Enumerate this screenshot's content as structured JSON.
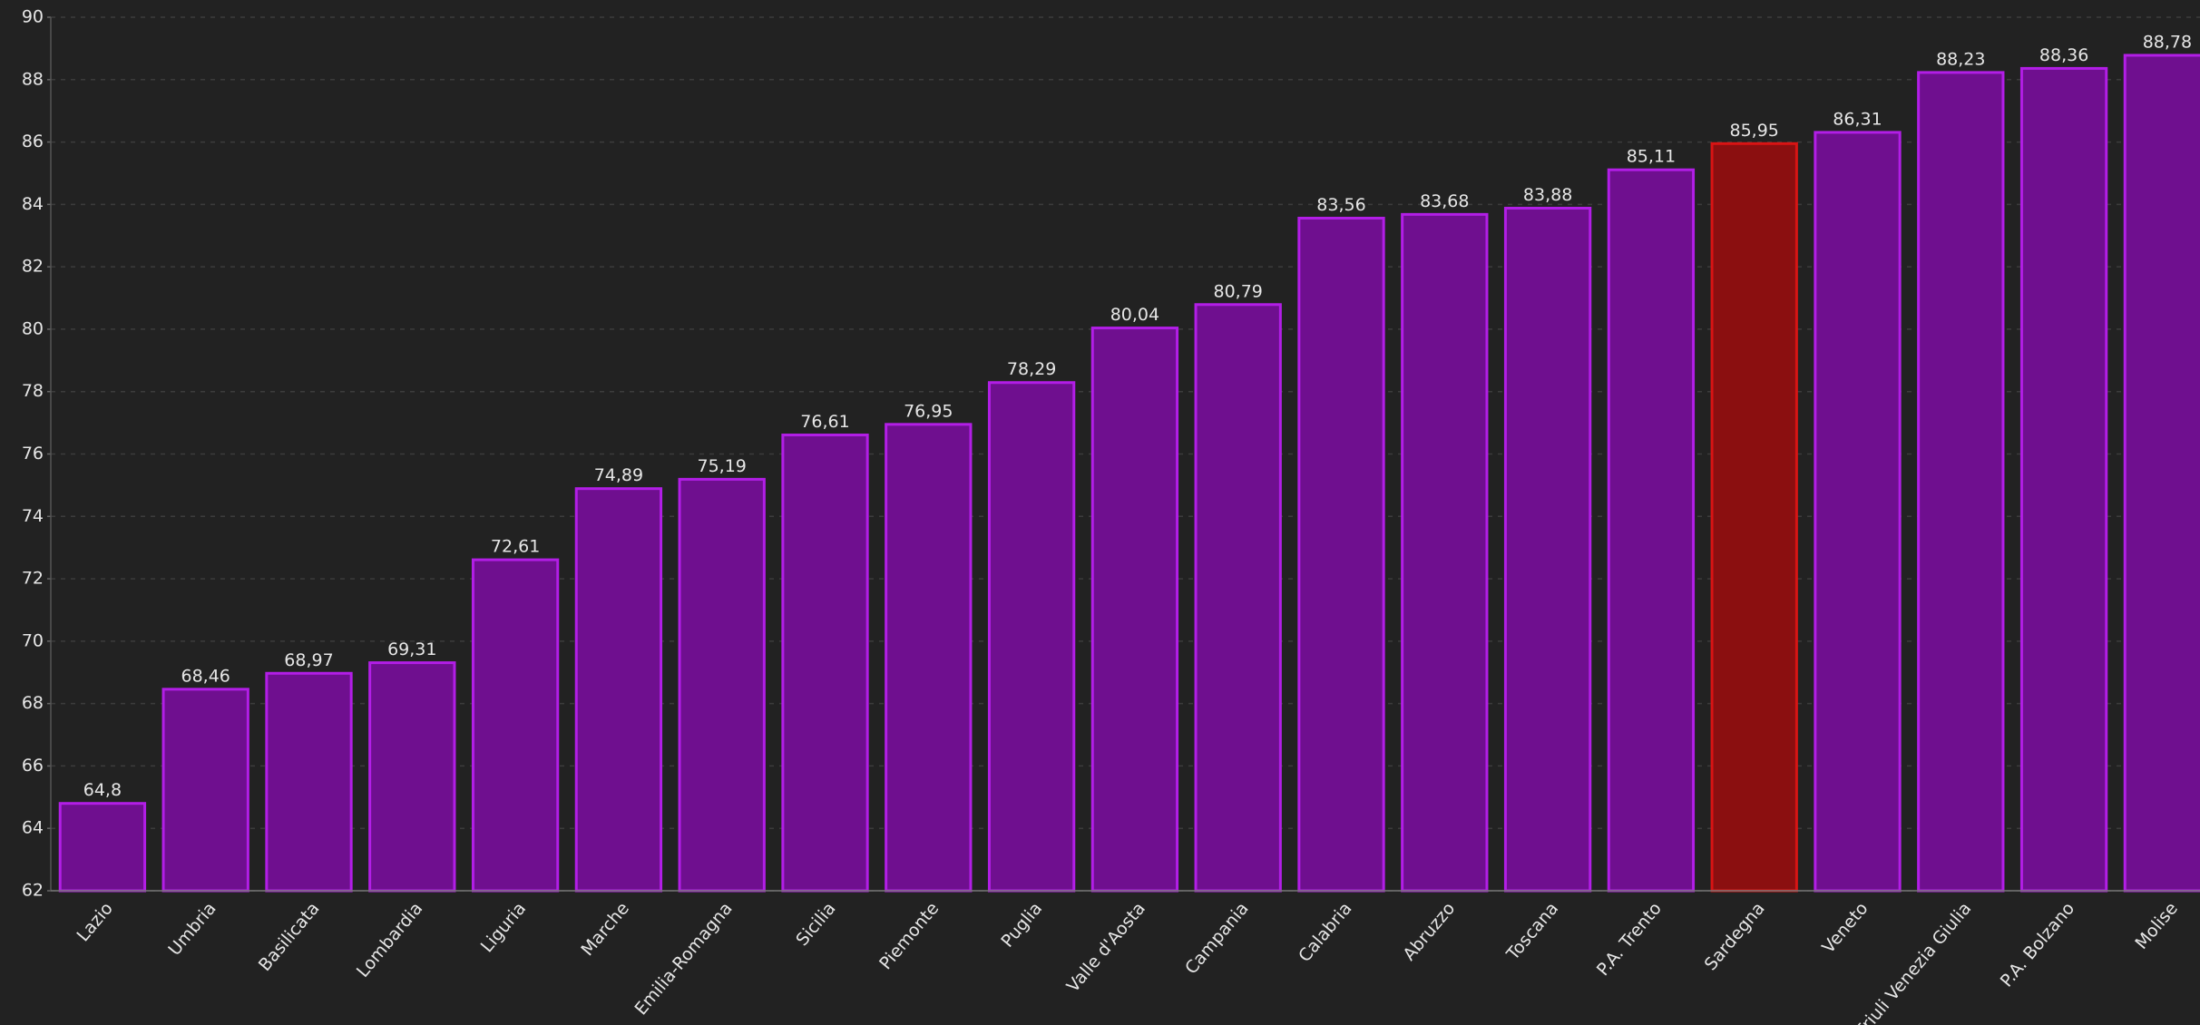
{
  "chart_data": {
    "type": "bar",
    "categories": [
      "Lazio",
      "Umbria",
      "Basilicata",
      "Lombardia",
      "Liguria",
      "Marche",
      "Emilia-Romagna",
      "Sicilia",
      "Piemonte",
      "Puglia",
      "Valle d'Aosta",
      "Campania",
      "Calabria",
      "Abruzzo",
      "Toscana",
      "P.A. Trento",
      "Sardegna",
      "Veneto",
      "Friuli Venezia Giulia",
      "P.A. Bolzano",
      "Molise"
    ],
    "values": [
      64.8,
      68.46,
      68.97,
      69.31,
      72.61,
      74.89,
      75.19,
      76.61,
      76.95,
      78.29,
      80.04,
      80.79,
      83.56,
      83.68,
      83.88,
      85.11,
      85.95,
      86.31,
      88.23,
      88.36,
      88.78
    ],
    "value_labels": [
      "64,8",
      "68,46",
      "68,97",
      "69,31",
      "72,61",
      "74,89",
      "75,19",
      "76,61",
      "76,95",
      "78,29",
      "80,04",
      "80,79",
      "83,56",
      "83,68",
      "83,88",
      "85,11",
      "85,95",
      "86,31",
      "88,23",
      "88,36",
      "88,78"
    ],
    "colors": [
      "#6f0f8f",
      "#6f0f8f",
      "#6f0f8f",
      "#6f0f8f",
      "#6f0f8f",
      "#6f0f8f",
      "#6f0f8f",
      "#6f0f8f",
      "#6f0f8f",
      "#6f0f8f",
      "#6f0f8f",
      "#6f0f8f",
      "#6f0f8f",
      "#6f0f8f",
      "#6f0f8f",
      "#6f0f8f",
      "#8b0f10",
      "#6f0f8f",
      "#6f0f8f",
      "#6f0f8f",
      "#6f0f8f"
    ],
    "edge_colors": [
      "#b21ee6",
      "#b21ee6",
      "#b21ee6",
      "#b21ee6",
      "#b21ee6",
      "#b21ee6",
      "#b21ee6",
      "#b21ee6",
      "#b21ee6",
      "#b21ee6",
      "#b21ee6",
      "#b21ee6",
      "#b21ee6",
      "#b21ee6",
      "#b21ee6",
      "#b21ee6",
      "#d81414",
      "#b21ee6",
      "#b21ee6",
      "#b21ee6",
      "#b21ee6"
    ],
    "ylim": [
      62,
      90
    ],
    "yticks": [
      62,
      64,
      66,
      68,
      70,
      72,
      74,
      76,
      78,
      80,
      82,
      84,
      86,
      88,
      90
    ],
    "grid": true
  }
}
